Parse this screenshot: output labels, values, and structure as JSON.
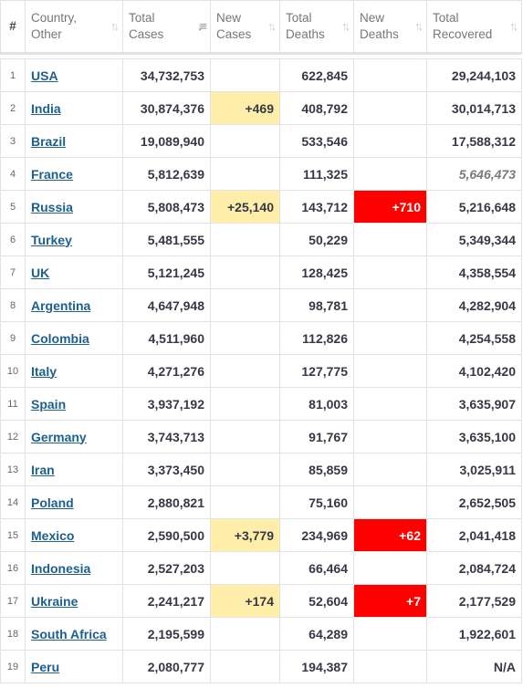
{
  "headers": {
    "index": "#",
    "country": [
      "Country,",
      "Other"
    ],
    "total_cases": [
      "Total",
      "Cases"
    ],
    "new_cases": [
      "New",
      "Cases"
    ],
    "total_deaths": [
      "Total",
      "Deaths"
    ],
    "new_deaths": [
      "New",
      "Deaths"
    ],
    "total_recovered": [
      "Total",
      "Recovered"
    ]
  },
  "sort": {
    "column": "total_cases",
    "direction": "descending"
  },
  "colors": {
    "new_cases_highlight": "#ffeeaa",
    "new_deaths_highlight": "#ff0000",
    "country_link": "#1d5f8e"
  },
  "rows": [
    {
      "rank": "1",
      "country": "USA",
      "total_cases": "34,732,753",
      "new_cases": "",
      "total_deaths": "622,845",
      "new_deaths": "",
      "total_recovered": "29,244,103",
      "recovered_estimated": false
    },
    {
      "rank": "2",
      "country": "India",
      "total_cases": "30,874,376",
      "new_cases": "+469",
      "total_deaths": "408,792",
      "new_deaths": "",
      "total_recovered": "30,014,713",
      "recovered_estimated": false
    },
    {
      "rank": "3",
      "country": "Brazil",
      "total_cases": "19,089,940",
      "new_cases": "",
      "total_deaths": "533,546",
      "new_deaths": "",
      "total_recovered": "17,588,312",
      "recovered_estimated": false
    },
    {
      "rank": "4",
      "country": "France",
      "total_cases": "5,812,639",
      "new_cases": "",
      "total_deaths": "111,325",
      "new_deaths": "",
      "total_recovered": "5,646,473",
      "recovered_estimated": true
    },
    {
      "rank": "5",
      "country": "Russia",
      "total_cases": "5,808,473",
      "new_cases": "+25,140",
      "total_deaths": "143,712",
      "new_deaths": "+710",
      "total_recovered": "5,216,648",
      "recovered_estimated": false
    },
    {
      "rank": "6",
      "country": "Turkey",
      "total_cases": "5,481,555",
      "new_cases": "",
      "total_deaths": "50,229",
      "new_deaths": "",
      "total_recovered": "5,349,344",
      "recovered_estimated": false
    },
    {
      "rank": "7",
      "country": "UK",
      "total_cases": "5,121,245",
      "new_cases": "",
      "total_deaths": "128,425",
      "new_deaths": "",
      "total_recovered": "4,358,554",
      "recovered_estimated": false
    },
    {
      "rank": "8",
      "country": "Argentina",
      "total_cases": "4,647,948",
      "new_cases": "",
      "total_deaths": "98,781",
      "new_deaths": "",
      "total_recovered": "4,282,904",
      "recovered_estimated": false
    },
    {
      "rank": "9",
      "country": "Colombia",
      "total_cases": "4,511,960",
      "new_cases": "",
      "total_deaths": "112,826",
      "new_deaths": "",
      "total_recovered": "4,254,558",
      "recovered_estimated": false
    },
    {
      "rank": "10",
      "country": "Italy",
      "total_cases": "4,271,276",
      "new_cases": "",
      "total_deaths": "127,775",
      "new_deaths": "",
      "total_recovered": "4,102,420",
      "recovered_estimated": false
    },
    {
      "rank": "11",
      "country": "Spain",
      "total_cases": "3,937,192",
      "new_cases": "",
      "total_deaths": "81,003",
      "new_deaths": "",
      "total_recovered": "3,635,907",
      "recovered_estimated": false
    },
    {
      "rank": "12",
      "country": "Germany",
      "total_cases": "3,743,713",
      "new_cases": "",
      "total_deaths": "91,767",
      "new_deaths": "",
      "total_recovered": "3,635,100",
      "recovered_estimated": false
    },
    {
      "rank": "13",
      "country": "Iran",
      "total_cases": "3,373,450",
      "new_cases": "",
      "total_deaths": "85,859",
      "new_deaths": "",
      "total_recovered": "3,025,911",
      "recovered_estimated": false
    },
    {
      "rank": "14",
      "country": "Poland",
      "total_cases": "2,880,821",
      "new_cases": "",
      "total_deaths": "75,160",
      "new_deaths": "",
      "total_recovered": "2,652,505",
      "recovered_estimated": false
    },
    {
      "rank": "15",
      "country": "Mexico",
      "total_cases": "2,590,500",
      "new_cases": "+3,779",
      "total_deaths": "234,969",
      "new_deaths": "+62",
      "total_recovered": "2,041,418",
      "recovered_estimated": false
    },
    {
      "rank": "16",
      "country": "Indonesia",
      "total_cases": "2,527,203",
      "new_cases": "",
      "total_deaths": "66,464",
      "new_deaths": "",
      "total_recovered": "2,084,724",
      "recovered_estimated": false
    },
    {
      "rank": "17",
      "country": "Ukraine",
      "total_cases": "2,241,217",
      "new_cases": "+174",
      "total_deaths": "52,604",
      "new_deaths": "+7",
      "total_recovered": "2,177,529",
      "recovered_estimated": false
    },
    {
      "rank": "18",
      "country": "South Africa",
      "total_cases": "2,195,599",
      "new_cases": "",
      "total_deaths": "64,289",
      "new_deaths": "",
      "total_recovered": "1,922,601",
      "recovered_estimated": false
    },
    {
      "rank": "19",
      "country": "Peru",
      "total_cases": "2,080,777",
      "new_cases": "",
      "total_deaths": "194,387",
      "new_deaths": "",
      "total_recovered": "N/A",
      "recovered_estimated": false
    }
  ]
}
